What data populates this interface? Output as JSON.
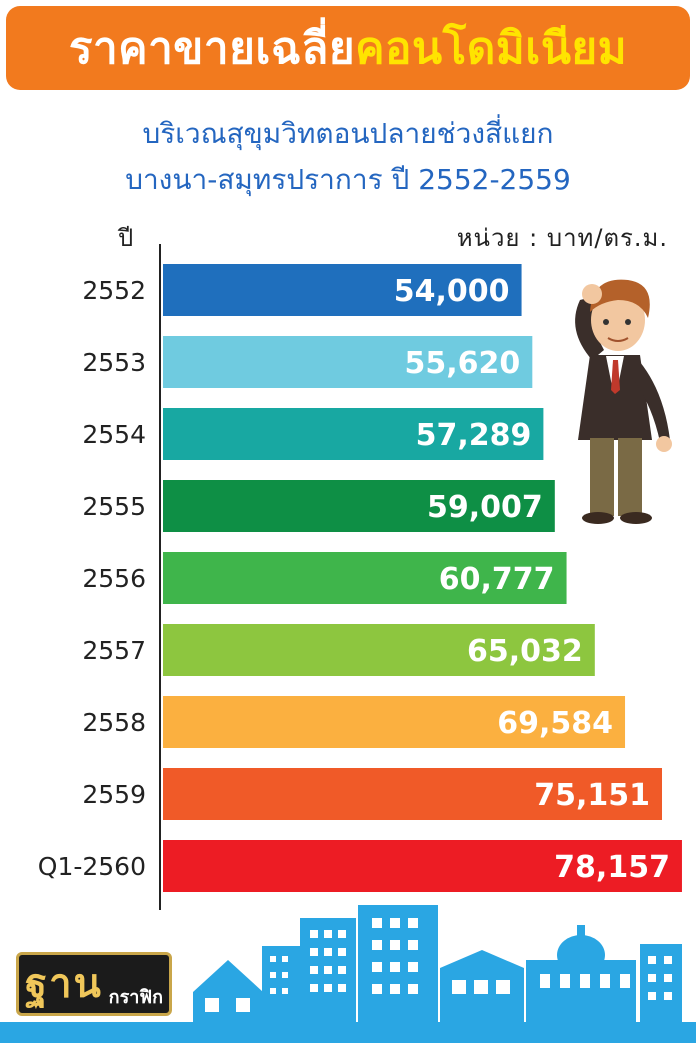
{
  "header": {
    "title_part1": "ราคาขายเฉลี่ย",
    "title_part2": "คอนโดมิเนียม",
    "subtitle_line1": "บริเวณสุขุมวิทตอนปลายช่วงสี่แยก",
    "subtitle_line2": "บางนา-สมุทรปราการ ปี 2552-2559"
  },
  "logo": {
    "main": "ฐาน",
    "sub": "กราฟิก"
  },
  "colors": {
    "banner": "#f27a1e",
    "highlight": "#ffe400",
    "subtitle": "#2466c0",
    "buildings": "#2aa6e3"
  },
  "chart_data": {
    "type": "bar",
    "orientation": "horizontal",
    "xlabel": "หน่วย : บาท/ตร.ม.",
    "ylabel": "ปี",
    "categories": [
      "2552",
      "2553",
      "2554",
      "2555",
      "2556",
      "2557",
      "2558",
      "2559",
      "Q1-2560"
    ],
    "values": [
      54000,
      55620,
      57289,
      59007,
      60777,
      65032,
      69584,
      75151,
      78157
    ],
    "value_labels": [
      "54,000",
      "55,620",
      "57,289",
      "59,007",
      "60,777",
      "65,032",
      "69,584",
      "75,151",
      "78,157"
    ],
    "bar_colors": [
      "#1f6fbd",
      "#6fcbe0",
      "#18a8a2",
      "#0e8f45",
      "#3fb54b",
      "#8dc63f",
      "#fbb040",
      "#f05a28",
      "#ed1c24"
    ],
    "grid": false
  }
}
